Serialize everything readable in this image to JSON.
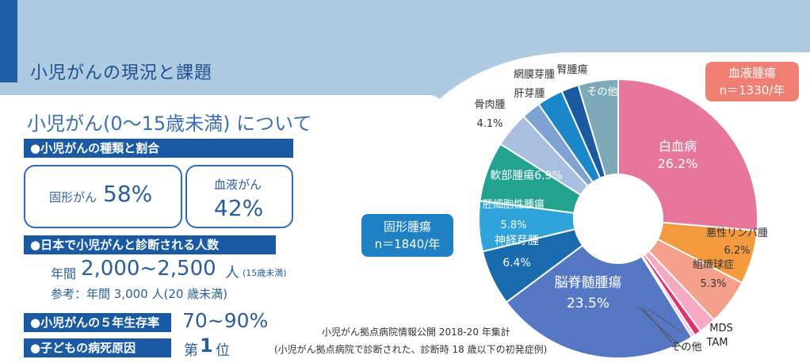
{
  "header": {
    "title": "小児がんの現況と課題"
  },
  "left": {
    "section_title": "小児がん(0〜15歳未満) について",
    "types": {
      "label": "●小児がんの種類と割合",
      "solid_label": "固形がん",
      "solid_value": "58%",
      "blood_label": "血液がん",
      "blood_value": "42%"
    },
    "count": {
      "label": "●日本で小児がんと診断される人数",
      "line1_prefix": "年間",
      "line1_value": "2,000~2,500",
      "line1_unit": "人",
      "line1_note": "(15歳未満)",
      "line2": "参考：年間 3,000 人(20 歳未満)"
    },
    "survival": {
      "label": "●小児がんの５年生存率",
      "value": "70~90%"
    },
    "death": {
      "label": "●子どもの病死原因",
      "prefix": "第",
      "num": "1",
      "suffix": "位"
    }
  },
  "colors": {
    "navy": "#1a5aa5",
    "band": "#aecbe2",
    "blood_tag": "#ef7f72",
    "solid_tag": "#1f80c3"
  },
  "chart_data": {
    "type": "pie",
    "title": "",
    "groups": [
      {
        "name": "血液腫瘍",
        "n": "n＝1330/年"
      },
      {
        "name": "固形腫瘍",
        "n": "n＝1840/年"
      }
    ],
    "slices": [
      {
        "name": "白血病",
        "value": 26.2,
        "label": "白血病",
        "pct": "26.2%",
        "color": "#e8769a"
      },
      {
        "name": "悪性リンパ腫",
        "value": 6.2,
        "label": "悪性リンパ腫",
        "pct": "6.2%",
        "color": "#f39a3e"
      },
      {
        "name": "組織球症",
        "value": 5.3,
        "label": "組織球症",
        "pct": "5.3%",
        "color": "#f4a08a"
      },
      {
        "name": "その他",
        "value": 2.0,
        "label": "その他",
        "pct": "",
        "color": "#f6a9c0"
      },
      {
        "name": "MDS",
        "value": 0.8,
        "label": "MDS",
        "pct": "",
        "color": "#e0336e"
      },
      {
        "name": "TAM",
        "value": 0.4,
        "label": "TAM",
        "pct": "",
        "color": "#f7c1d4"
      },
      {
        "name": "脳脊髄腫瘍",
        "value": 23.5,
        "label": "脳脊髄腫瘍",
        "pct": "23.5%",
        "color": "#5577c4"
      },
      {
        "name": "神経芽腫",
        "value": 6.4,
        "label": "神経芽腫",
        "pct": "6.4%",
        "color": "#1a6aae"
      },
      {
        "name": "胚細胞性腫瘍",
        "value": 5.8,
        "label": "胚細胞性腫瘍",
        "pct": "5.8%",
        "color": "#2ea4da"
      },
      {
        "name": "軟部腫瘍",
        "value": 6.9,
        "label": "軟部腫瘍",
        "pct": "6.9%",
        "color": "#23a38f"
      },
      {
        "name": "骨肉腫",
        "value": 4.1,
        "label": "骨肉腫",
        "pct": "4.1%",
        "color": "#a9bfe0"
      },
      {
        "name": "肝芽腫",
        "value": 2.2,
        "label": "肝芽腫",
        "pct": "",
        "color": "#7ea3d2"
      },
      {
        "name": "網膜芽腫",
        "value": 3.0,
        "label": "網膜芽腫",
        "pct": "",
        "color": "#1a87c8"
      },
      {
        "name": "腎腫瘍",
        "value": 2.0,
        "label": "腎腫瘍",
        "pct": "",
        "color": "#1a5a9e"
      },
      {
        "name": "その他(固形)",
        "value": 4.6,
        "label": "その他",
        "pct": "",
        "color": "#7ea9b8"
      }
    ],
    "source_line1": "小児がん拠点病院情報公開 2018-20 年集計",
    "source_line2": "(小児がん拠点病院で診断された、診断時 18 歳以下の初発症例)"
  }
}
